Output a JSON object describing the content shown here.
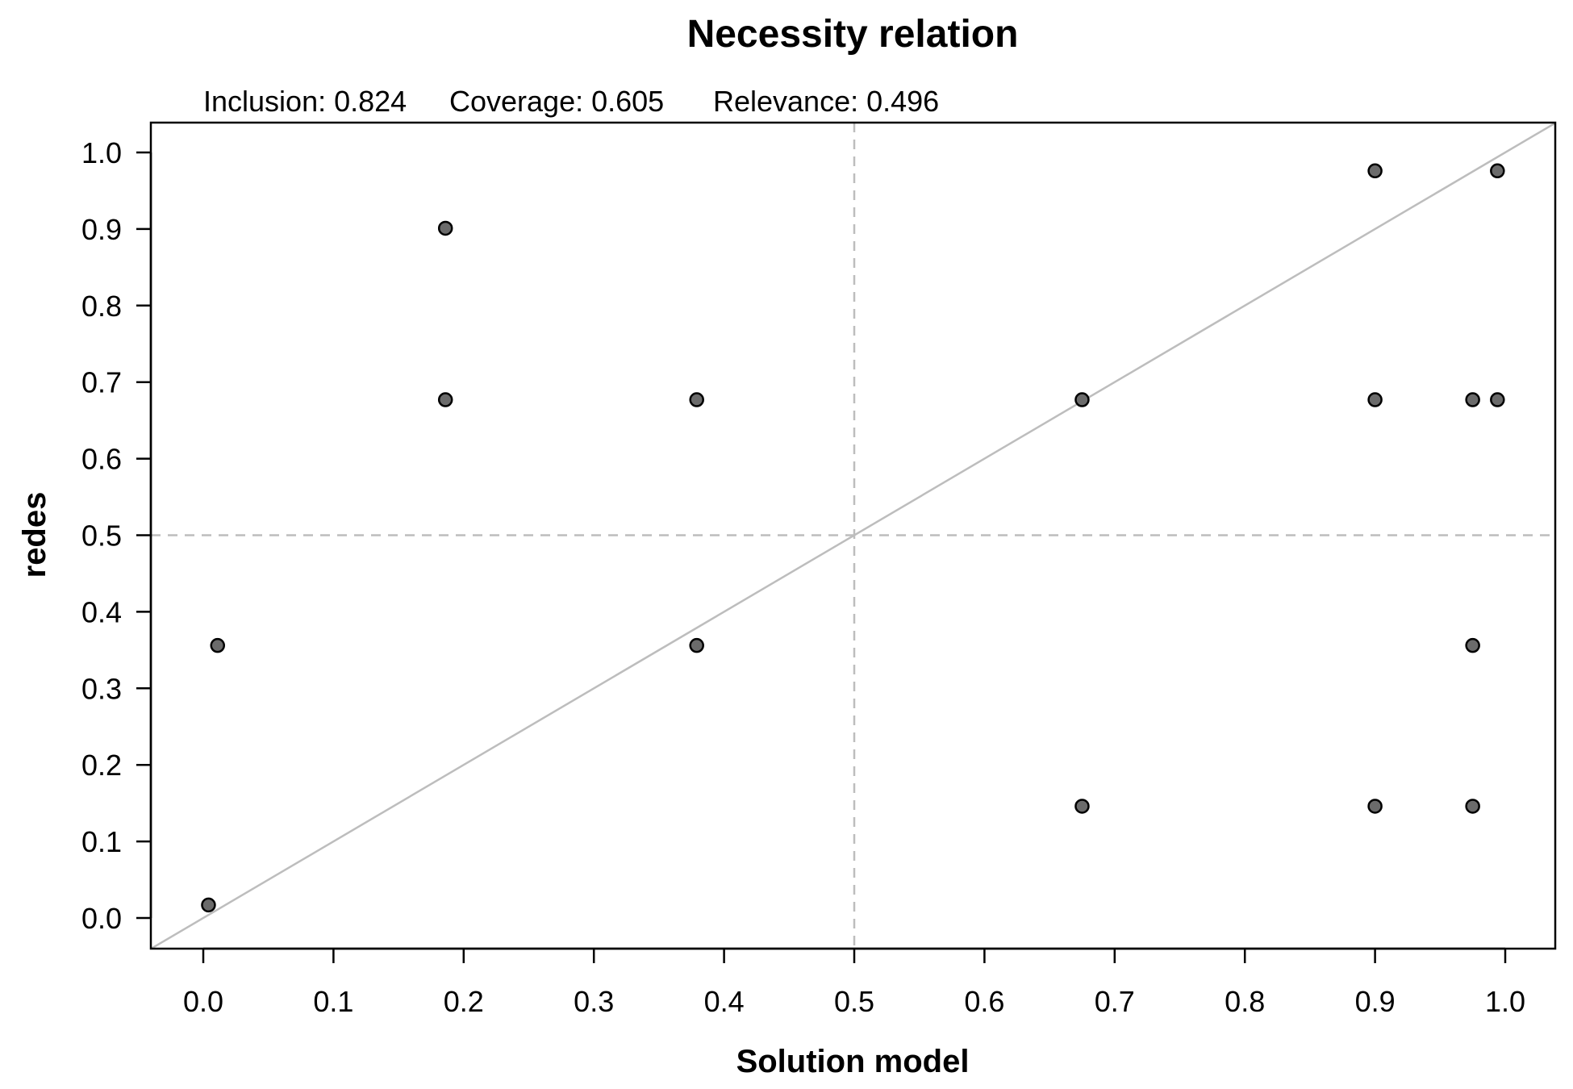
{
  "chart_data": {
    "type": "scatter",
    "title": "Necessity relation",
    "stats": {
      "inclusion": "Inclusion: 0.824",
      "coverage": "Coverage: 0.605",
      "relevance": "Relevance: 0.496"
    },
    "xlabel": "Solution model",
    "ylabel": "redes",
    "xlim": [
      0,
      1
    ],
    "ylim": [
      0,
      1
    ],
    "xticks": [
      "0.0",
      "0.1",
      "0.2",
      "0.3",
      "0.4",
      "0.5",
      "0.6",
      "0.7",
      "0.8",
      "0.9",
      "1.0"
    ],
    "yticks": [
      "0.0",
      "0.1",
      "0.2",
      "0.3",
      "0.4",
      "0.5",
      "0.6",
      "0.7",
      "0.8",
      "0.9",
      "1.0"
    ],
    "reference_lines": {
      "diagonal": true,
      "threshold_x": 0.5,
      "threshold_y": 0.5
    },
    "points": [
      {
        "x": 0.004,
        "y": 0.017
      },
      {
        "x": 0.011,
        "y": 0.356
      },
      {
        "x": 0.186,
        "y": 0.677
      },
      {
        "x": 0.186,
        "y": 0.901
      },
      {
        "x": 0.379,
        "y": 0.356
      },
      {
        "x": 0.379,
        "y": 0.677
      },
      {
        "x": 0.675,
        "y": 0.146
      },
      {
        "x": 0.675,
        "y": 0.677
      },
      {
        "x": 0.9,
        "y": 0.146
      },
      {
        "x": 0.9,
        "y": 0.677
      },
      {
        "x": 0.9,
        "y": 0.976
      },
      {
        "x": 0.975,
        "y": 0.146
      },
      {
        "x": 0.975,
        "y": 0.356
      },
      {
        "x": 0.975,
        "y": 0.677
      },
      {
        "x": 0.994,
        "y": 0.677
      },
      {
        "x": 0.994,
        "y": 0.976
      }
    ],
    "colors": {
      "point_fill": "#6b6b6b",
      "point_stroke": "#000000",
      "reference": "#bdbdbd",
      "frame": "#000000"
    }
  }
}
